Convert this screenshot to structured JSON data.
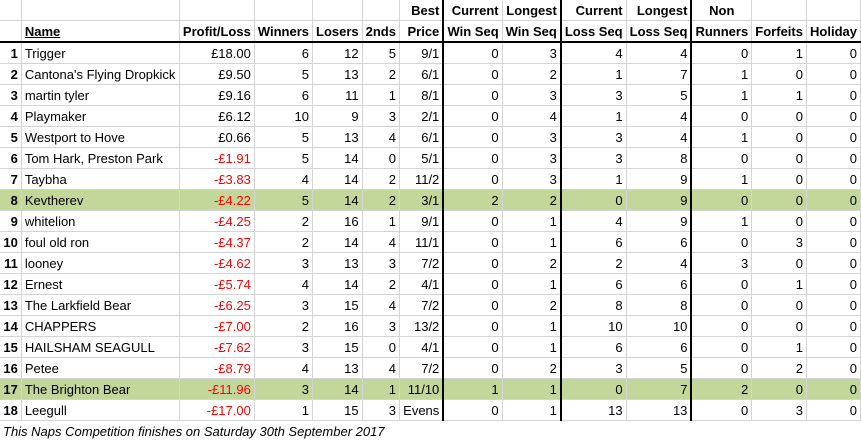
{
  "headers": {
    "col_name": "Name",
    "col_profit": "Profit/Loss",
    "col_winners": "Winners",
    "col_losers": "Losers",
    "col_2nds": "2nds",
    "col_bestprice_1": "Best",
    "col_bestprice_2": "Price",
    "col_curwin_1": "Current",
    "col_curwin_2": "Win Seq",
    "col_longwin_1": "Longest",
    "col_longwin_2": "Win Seq",
    "col_curloss_1": "Current",
    "col_curloss_2": "Loss Seq",
    "col_longloss_1": "Longest",
    "col_longloss_2": "Loss Seq",
    "col_nonrunners_1": "Non",
    "col_nonrunners_2": "Runners",
    "col_forfeits": "Forfeits",
    "col_holiday": "Holiday"
  },
  "rows": [
    {
      "rank": "1",
      "name": "Trigger",
      "profit": "£18.00",
      "neg": false,
      "winners": "6",
      "losers": "12",
      "seconds": "5",
      "best": "9/1",
      "curwin": "0",
      "longwin": "3",
      "curloss": "4",
      "longloss": "4",
      "nonrunners": "0",
      "forfeits": "1",
      "holiday": "0",
      "hl": false
    },
    {
      "rank": "2",
      "name": "Cantona's Flying Dropkick",
      "profit": "£9.50",
      "neg": false,
      "winners": "5",
      "losers": "13",
      "seconds": "2",
      "best": "6/1",
      "curwin": "0",
      "longwin": "2",
      "curloss": "1",
      "longloss": "7",
      "nonrunners": "1",
      "forfeits": "0",
      "holiday": "0",
      "hl": false
    },
    {
      "rank": "3",
      "name": "martin tyler",
      "profit": "£9.16",
      "neg": false,
      "winners": "6",
      "losers": "11",
      "seconds": "1",
      "best": "8/1",
      "curwin": "0",
      "longwin": "3",
      "curloss": "3",
      "longloss": "5",
      "nonrunners": "1",
      "forfeits": "1",
      "holiday": "0",
      "hl": false
    },
    {
      "rank": "4",
      "name": "Playmaker",
      "profit": "£6.12",
      "neg": false,
      "winners": "10",
      "losers": "9",
      "seconds": "3",
      "best": "2/1",
      "curwin": "0",
      "longwin": "4",
      "curloss": "1",
      "longloss": "4",
      "nonrunners": "0",
      "forfeits": "0",
      "holiday": "0",
      "hl": false
    },
    {
      "rank": "5",
      "name": "Westport to Hove",
      "profit": "£0.66",
      "neg": false,
      "winners": "5",
      "losers": "13",
      "seconds": "4",
      "best": "6/1",
      "curwin": "0",
      "longwin": "3",
      "curloss": "3",
      "longloss": "4",
      "nonrunners": "1",
      "forfeits": "0",
      "holiday": "0",
      "hl": false
    },
    {
      "rank": "6",
      "name": "Tom Hark, Preston Park",
      "profit": "-£1.91",
      "neg": true,
      "winners": "5",
      "losers": "14",
      "seconds": "0",
      "best": "5/1",
      "curwin": "0",
      "longwin": "3",
      "curloss": "3",
      "longloss": "8",
      "nonrunners": "0",
      "forfeits": "0",
      "holiday": "0",
      "hl": false
    },
    {
      "rank": "7",
      "name": "Taybha",
      "profit": "-£3.83",
      "neg": true,
      "winners": "4",
      "losers": "14",
      "seconds": "2",
      "best": "11/2",
      "curwin": "0",
      "longwin": "3",
      "curloss": "1",
      "longloss": "9",
      "nonrunners": "1",
      "forfeits": "0",
      "holiday": "0",
      "hl": false
    },
    {
      "rank": "8",
      "name": "Kevtherev",
      "profit": "-£4.22",
      "neg": true,
      "winners": "5",
      "losers": "14",
      "seconds": "2",
      "best": "3/1",
      "curwin": "2",
      "longwin": "2",
      "curloss": "0",
      "longloss": "9",
      "nonrunners": "0",
      "forfeits": "0",
      "holiday": "0",
      "hl": true
    },
    {
      "rank": "9",
      "name": "whitelion",
      "profit": "-£4.25",
      "neg": true,
      "winners": "2",
      "losers": "16",
      "seconds": "1",
      "best": "9/1",
      "curwin": "0",
      "longwin": "1",
      "curloss": "4",
      "longloss": "9",
      "nonrunners": "1",
      "forfeits": "0",
      "holiday": "0",
      "hl": false
    },
    {
      "rank": "10",
      "name": "foul old ron",
      "profit": "-£4.37",
      "neg": true,
      "winners": "2",
      "losers": "14",
      "seconds": "4",
      "best": "11/1",
      "curwin": "0",
      "longwin": "1",
      "curloss": "6",
      "longloss": "6",
      "nonrunners": "0",
      "forfeits": "3",
      "holiday": "0",
      "hl": false
    },
    {
      "rank": "11",
      "name": "looney",
      "profit": "-£4.62",
      "neg": true,
      "winners": "3",
      "losers": "13",
      "seconds": "3",
      "best": "7/2",
      "curwin": "0",
      "longwin": "2",
      "curloss": "2",
      "longloss": "4",
      "nonrunners": "3",
      "forfeits": "0",
      "holiday": "0",
      "hl": false
    },
    {
      "rank": "12",
      "name": "Ernest",
      "profit": "-£5.74",
      "neg": true,
      "winners": "4",
      "losers": "14",
      "seconds": "2",
      "best": "4/1",
      "curwin": "0",
      "longwin": "1",
      "curloss": "6",
      "longloss": "6",
      "nonrunners": "0",
      "forfeits": "1",
      "holiday": "0",
      "hl": false
    },
    {
      "rank": "13",
      "name": "The Larkfield Bear",
      "profit": "-£6.25",
      "neg": true,
      "winners": "3",
      "losers": "15",
      "seconds": "4",
      "best": "7/2",
      "curwin": "0",
      "longwin": "2",
      "curloss": "8",
      "longloss": "8",
      "nonrunners": "0",
      "forfeits": "0",
      "holiday": "0",
      "hl": false
    },
    {
      "rank": "14",
      "name": "CHAPPERS",
      "profit": "-£7.00",
      "neg": true,
      "winners": "2",
      "losers": "16",
      "seconds": "3",
      "best": "13/2",
      "curwin": "0",
      "longwin": "1",
      "curloss": "10",
      "longloss": "10",
      "nonrunners": "0",
      "forfeits": "0",
      "holiday": "0",
      "hl": false
    },
    {
      "rank": "15",
      "name": "HAILSHAM SEAGULL",
      "profit": "-£7.62",
      "neg": true,
      "winners": "3",
      "losers": "15",
      "seconds": "0",
      "best": "4/1",
      "curwin": "0",
      "longwin": "1",
      "curloss": "6",
      "longloss": "6",
      "nonrunners": "0",
      "forfeits": "1",
      "holiday": "0",
      "hl": false
    },
    {
      "rank": "16",
      "name": "Petee",
      "profit": "-£8.79",
      "neg": true,
      "winners": "4",
      "losers": "13",
      "seconds": "4",
      "best": "7/2",
      "curwin": "0",
      "longwin": "2",
      "curloss": "3",
      "longloss": "5",
      "nonrunners": "0",
      "forfeits": "2",
      "holiday": "0",
      "hl": false
    },
    {
      "rank": "17",
      "name": "The Brighton Bear",
      "profit": "-£11.96",
      "neg": true,
      "winners": "3",
      "losers": "14",
      "seconds": "1",
      "best": "11/10",
      "curwin": "1",
      "longwin": "1",
      "curloss": "0",
      "longloss": "7",
      "nonrunners": "2",
      "forfeits": "0",
      "holiday": "0",
      "hl": true
    },
    {
      "rank": "18",
      "name": "Leegull",
      "profit": "-£17.00",
      "neg": true,
      "winners": "1",
      "losers": "15",
      "seconds": "3",
      "best": "Evens",
      "curwin": "0",
      "longwin": "1",
      "curloss": "13",
      "longloss": "13",
      "nonrunners": "0",
      "forfeits": "3",
      "holiday": "0",
      "hl": false
    }
  ],
  "footer": {
    "note": "This Naps Competition finishes on Saturday 30th September 2017"
  },
  "colors": {
    "highlight": "#c4d79b",
    "negative": "#ff0000"
  }
}
